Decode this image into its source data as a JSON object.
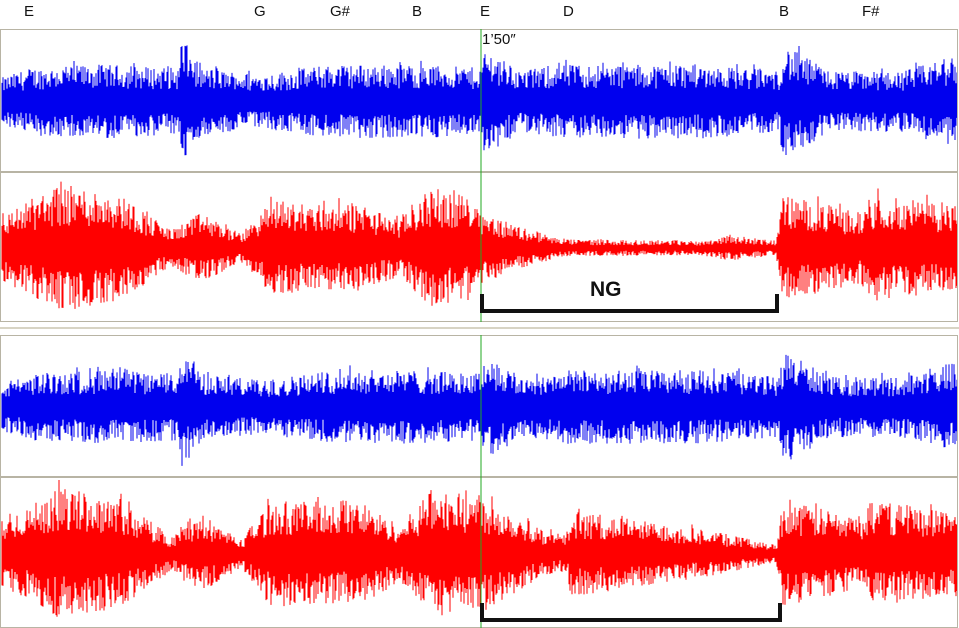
{
  "notes": [
    "E",
    "G",
    "G#",
    "B",
    "E",
    "D",
    "B",
    "F#"
  ],
  "time_marker": "1’50″",
  "ng_label": "NG",
  "colors": {
    "blue": "#0000ee",
    "red": "#ff0000",
    "cursor": "#22aa22",
    "bracket": "#111111"
  },
  "chart_data": {
    "type": "waveform",
    "tracks": [
      {
        "color": "blue",
        "group": "upper"
      },
      {
        "color": "red",
        "group": "upper"
      },
      {
        "color": "blue",
        "group": "lower"
      },
      {
        "color": "red",
        "group": "lower"
      }
    ]
  }
}
